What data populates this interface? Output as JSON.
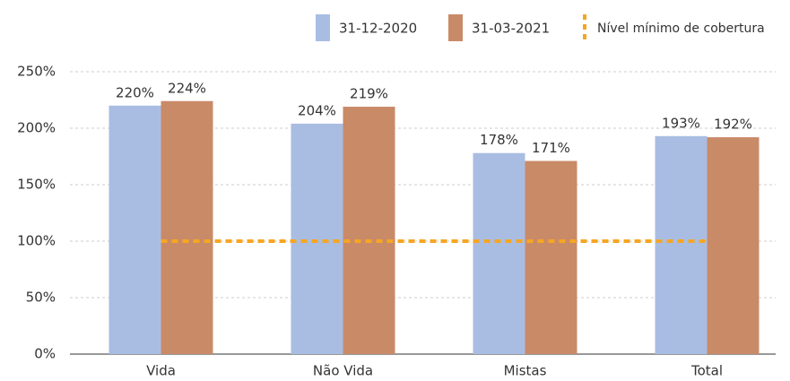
{
  "chart_data": {
    "type": "bar",
    "categories": [
      "Vida",
      "Não Vida",
      "Mistas",
      "Total"
    ],
    "series": [
      {
        "name": "31-12-2020",
        "color": "#a9bde3",
        "values": [
          220,
          204,
          178,
          193
        ],
        "value_labels": [
          "220%",
          "204%",
          "178%",
          "193%"
        ]
      },
      {
        "name": "31-03-2021",
        "color": "#c98a68",
        "values": [
          224,
          219,
          171,
          192
        ],
        "value_labels": [
          "224%",
          "219%",
          "171%",
          "192%"
        ]
      },
      {
        "name": "Nível mínimo de cobertura",
        "type": "line",
        "color": "#f5a623",
        "values": [
          100,
          100,
          100,
          100
        ]
      }
    ],
    "ylim": [
      0,
      250
    ],
    "yticks": [
      {
        "value": 0,
        "label": "0%"
      },
      {
        "value": 50,
        "label": "50%"
      },
      {
        "value": 100,
        "label": "100%"
      },
      {
        "value": 150,
        "label": "150%"
      },
      {
        "value": 200,
        "label": "200%"
      },
      {
        "value": 250,
        "label": "250%"
      }
    ],
    "grid": true,
    "legend": "top-right"
  }
}
